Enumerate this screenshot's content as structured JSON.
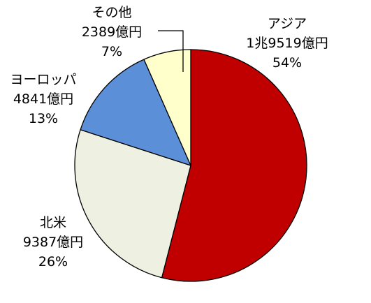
{
  "chart_data": {
    "type": "pie",
    "start_angle_deg": 0,
    "direction": "clockwise",
    "slices": [
      {
        "name": "アジア",
        "value_text": "1兆9519億円",
        "amount_oku_yen": 19519,
        "percent_text": "54%",
        "percent": 54,
        "color": "#C00000"
      },
      {
        "name": "北米",
        "value_text": "9387億円",
        "amount_oku_yen": 9387,
        "percent_text": "26%",
        "percent": 26,
        "color": "#EEF0E1"
      },
      {
        "name": "ヨーロッパ",
        "value_text": "4841億円",
        "amount_oku_yen": 4841,
        "percent_text": "13%",
        "percent": 13,
        "color": "#5B8FD8"
      },
      {
        "name": "その他",
        "value_text": "2389億円",
        "amount_oku_yen": 2389,
        "percent_text": "7%",
        "percent": 7,
        "color": "#FFFFCC"
      }
    ]
  }
}
